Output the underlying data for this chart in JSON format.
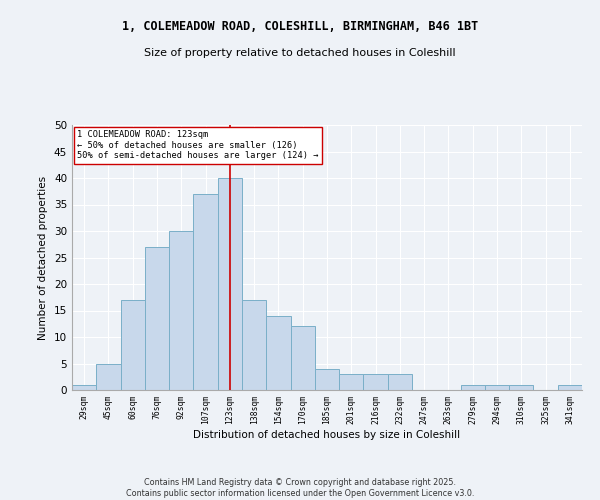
{
  "title_line1": "1, COLEMEADOW ROAD, COLESHILL, BIRMINGHAM, B46 1BT",
  "title_line2": "Size of property relative to detached houses in Coleshill",
  "xlabel": "Distribution of detached houses by size in Coleshill",
  "ylabel": "Number of detached properties",
  "categories": [
    "29sqm",
    "45sqm",
    "60sqm",
    "76sqm",
    "92sqm",
    "107sqm",
    "123sqm",
    "138sqm",
    "154sqm",
    "170sqm",
    "185sqm",
    "201sqm",
    "216sqm",
    "232sqm",
    "247sqm",
    "263sqm",
    "279sqm",
    "294sqm",
    "310sqm",
    "325sqm",
    "341sqm"
  ],
  "values": [
    1,
    5,
    17,
    27,
    30,
    37,
    40,
    17,
    14,
    12,
    4,
    3,
    3,
    3,
    0,
    0,
    1,
    1,
    1,
    0,
    1
  ],
  "bar_color": "#c8d8eb",
  "bar_edge_color": "#7aafc8",
  "annotation_line1": "1 COLEMEADOW ROAD: 123sqm",
  "annotation_line2": "← 50% of detached houses are smaller (126)",
  "annotation_line3": "50% of semi-detached houses are larger (124) →",
  "vline_color": "#cc0000",
  "annotation_box_edge": "#cc0000",
  "ylim": [
    0,
    50
  ],
  "yticks": [
    0,
    5,
    10,
    15,
    20,
    25,
    30,
    35,
    40,
    45,
    50
  ],
  "footer": "Contains HM Land Registry data © Crown copyright and database right 2025.\nContains public sector information licensed under the Open Government Licence v3.0.",
  "bg_color": "#eef2f7",
  "plot_bg_color": "#eef2f7",
  "grid_color": "#ffffff"
}
